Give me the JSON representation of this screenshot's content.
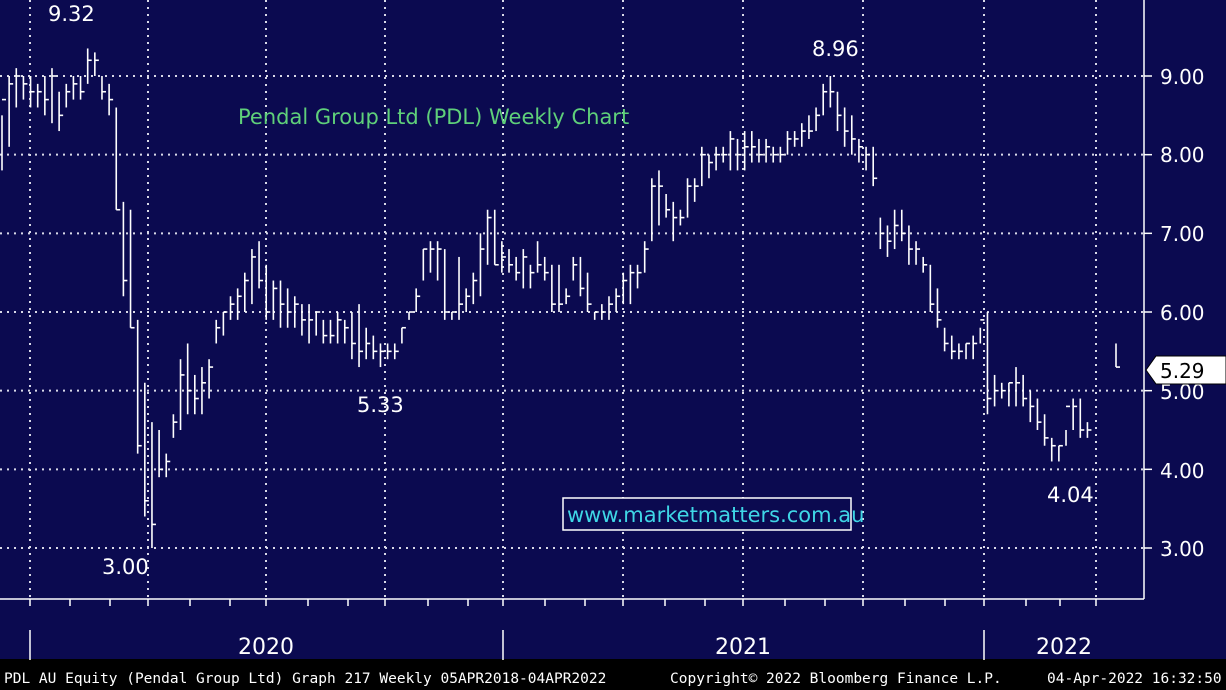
{
  "chart_data": {
    "type": "ohlc",
    "title": "Pendal Group Ltd (PDL) Weekly Chart",
    "watermark": "www.marketmatters.com.au",
    "ylim": [
      2.4,
      9.95
    ],
    "y_ticks": [
      3.0,
      4.0,
      5.0,
      6.0,
      7.0,
      8.0,
      9.0
    ],
    "y_tick_labels": [
      "3.00",
      "4.00",
      "5.00",
      "6.00",
      "7.00",
      "8.00",
      "9.00"
    ],
    "x_labels": [
      "2020",
      "2021",
      "2022"
    ],
    "last_price": "5.29",
    "annotations": [
      {
        "text": "9.32",
        "value": 9.32
      },
      {
        "text": "3.00",
        "value": 3.0
      },
      {
        "text": "5.33",
        "value": 5.33
      },
      {
        "text": "8.96",
        "value": 8.96
      },
      {
        "text": "4.04",
        "value": 4.04
      }
    ],
    "series": {
      "high": [
        8.5,
        9.0,
        9.1,
        9.0,
        9.0,
        8.9,
        9.0,
        9.1,
        8.8,
        8.9,
        9.0,
        9.0,
        9.35,
        9.3,
        9.0,
        8.9,
        8.6,
        7.4,
        7.3,
        5.9,
        5.1,
        4.6,
        4.5,
        4.2,
        4.7,
        5.4,
        5.6,
        5.2,
        5.3,
        5.4,
        5.9,
        6.0,
        6.2,
        6.3,
        6.5,
        6.8,
        6.9,
        6.6,
        6.4,
        6.4,
        6.3,
        6.2,
        6.1,
        6.1,
        6.0,
        5.9,
        5.9,
        6.0,
        5.9,
        6.0,
        6.1,
        5.8,
        5.7,
        5.6,
        5.6,
        5.6,
        5.8,
        6.0,
        6.3,
        6.8,
        6.9,
        6.9,
        6.8,
        6.0,
        6.7,
        6.3,
        6.5,
        7.0,
        7.3,
        7.3,
        6.9,
        6.8,
        6.7,
        6.8,
        6.6,
        6.9,
        6.7,
        6.6,
        6.6,
        6.3,
        6.7,
        6.7,
        6.5,
        6.0,
        6.1,
        6.2,
        6.3,
        6.5,
        6.6,
        6.6,
        6.9,
        7.7,
        7.8,
        7.5,
        7.4,
        7.3,
        7.7,
        7.7,
        8.1,
        8.0,
        8.1,
        8.1,
        8.3,
        8.2,
        8.3,
        8.3,
        8.2,
        8.2,
        8.1,
        8.1,
        8.3,
        8.3,
        8.4,
        8.5,
        8.6,
        8.9,
        9.0,
        8.8,
        8.6,
        8.5,
        8.2,
        8.1,
        8.1,
        7.2,
        7.1,
        7.3,
        7.3,
        7.1,
        6.9,
        6.7,
        6.6,
        6.3,
        5.8,
        5.7,
        5.6,
        5.6,
        5.7,
        5.8,
        6.0,
        5.2,
        5.1,
        5.1,
        5.3,
        5.2,
        5.0,
        4.9,
        4.7,
        4.4,
        4.3,
        4.5,
        4.9,
        4.9,
        4.6,
        null,
        null,
        null,
        5.6
      ],
      "low": [
        7.8,
        8.1,
        8.6,
        8.7,
        8.6,
        8.6,
        8.5,
        8.4,
        8.3,
        8.6,
        8.7,
        8.7,
        8.9,
        9.0,
        8.7,
        8.5,
        7.3,
        6.2,
        5.8,
        4.2,
        3.4,
        3.0,
        3.9,
        3.9,
        4.4,
        4.5,
        4.7,
        4.7,
        4.7,
        4.9,
        5.6,
        5.7,
        5.9,
        5.9,
        6.0,
        6.1,
        6.3,
        5.9,
        5.9,
        5.8,
        5.8,
        5.8,
        5.7,
        5.6,
        5.7,
        5.6,
        5.6,
        5.6,
        5.6,
        5.4,
        5.3,
        5.4,
        5.4,
        5.3,
        5.4,
        5.4,
        5.6,
        5.9,
        6.0,
        6.4,
        6.5,
        6.4,
        5.9,
        5.9,
        5.9,
        6.0,
        6.1,
        6.2,
        6.6,
        6.6,
        6.5,
        6.5,
        6.4,
        6.3,
        6.3,
        6.5,
        6.4,
        6.0,
        6.0,
        6.1,
        6.4,
        6.2,
        6.0,
        5.9,
        5.9,
        5.9,
        6.0,
        6.1,
        6.1,
        6.3,
        6.5,
        6.9,
        7.1,
        7.2,
        6.9,
        7.1,
        7.2,
        7.4,
        7.6,
        7.7,
        7.8,
        7.9,
        7.8,
        7.8,
        7.8,
        7.9,
        7.9,
        7.9,
        7.9,
        7.9,
        8.0,
        8.1,
        8.1,
        8.2,
        8.3,
        8.5,
        8.6,
        8.3,
        8.1,
        8.0,
        7.9,
        7.8,
        7.6,
        6.8,
        6.7,
        6.8,
        6.9,
        6.6,
        6.6,
        6.5,
        6.0,
        5.8,
        5.5,
        5.4,
        5.4,
        5.4,
        5.4,
        5.6,
        4.7,
        4.8,
        4.9,
        4.8,
        4.8,
        4.8,
        4.6,
        4.5,
        4.3,
        4.1,
        4.1,
        4.3,
        4.5,
        4.4,
        4.4,
        null,
        null,
        null,
        5.3
      ],
      "close": [
        8.7,
        8.9,
        9.0,
        8.9,
        8.8,
        8.8,
        8.7,
        9.0,
        8.5,
        8.8,
        8.9,
        8.8,
        9.2,
        9.2,
        8.8,
        8.7,
        7.3,
        6.4,
        5.8,
        4.3,
        3.6,
        3.3,
        4.0,
        4.1,
        4.6,
        5.2,
        5.0,
        4.9,
        5.1,
        5.3,
        5.8,
        6.0,
        6.1,
        6.2,
        6.4,
        6.7,
        6.4,
        6.0,
        6.3,
        6.1,
        6.0,
        6.1,
        5.9,
        5.9,
        6.0,
        5.7,
        5.7,
        5.9,
        5.8,
        5.6,
        5.5,
        5.6,
        5.5,
        5.5,
        5.5,
        5.5,
        5.8,
        6.0,
        6.2,
        6.8,
        6.8,
        6.8,
        6.0,
        6.0,
        6.1,
        6.2,
        6.4,
        6.8,
        7.2,
        6.6,
        6.7,
        6.6,
        6.5,
        6.7,
        6.5,
        6.6,
        6.5,
        6.1,
        6.1,
        6.2,
        6.6,
        6.3,
        6.1,
        6.0,
        6.0,
        6.1,
        6.2,
        6.4,
        6.5,
        6.5,
        6.8,
        7.6,
        7.6,
        7.3,
        7.2,
        7.2,
        7.6,
        7.6,
        8.0,
        7.9,
        8.0,
        8.0,
        8.2,
        8.0,
        8.1,
        8.1,
        8.0,
        8.1,
        8.0,
        8.0,
        8.2,
        8.2,
        8.3,
        8.3,
        8.5,
        8.8,
        8.8,
        8.5,
        8.3,
        8.2,
        8.1,
        8.0,
        7.7,
        7.0,
        6.9,
        7.1,
        7.0,
        6.8,
        6.8,
        6.6,
        6.1,
        5.9,
        5.6,
        5.5,
        5.5,
        5.6,
        5.6,
        5.9,
        4.9,
        5.0,
        5.0,
        5.1,
        5.1,
        4.9,
        4.8,
        4.6,
        4.4,
        4.3,
        4.3,
        4.8,
        4.8,
        4.5,
        4.5,
        null,
        null,
        null,
        5.3
      ]
    }
  },
  "footer": {
    "left": "PDL AU Equity (Pendal Group Ltd) Graph 217  Weekly 05APR2018-04APR2022",
    "center": "Copyright© 2022 Bloomberg Finance L.P.",
    "right": "04-Apr-2022 16:32:50"
  },
  "colors": {
    "plot_bg": "#0b0a50",
    "grid": "#d9d9e8",
    "bars": "#ffffff",
    "title": "#5fd07a",
    "watermark": "#3fd6e6"
  }
}
